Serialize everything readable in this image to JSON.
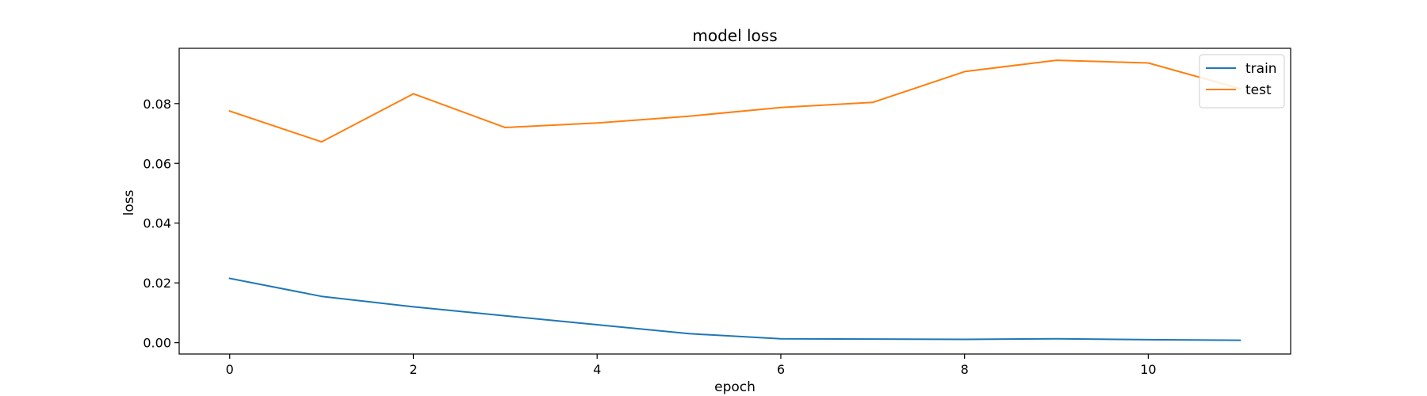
{
  "chart_data": {
    "type": "line",
    "title": "model loss",
    "xlabel": "epoch",
    "ylabel": "loss",
    "xlim": [
      -0.55,
      11.55
    ],
    "ylim": [
      -0.0038,
      0.0985
    ],
    "xticks": [
      "0",
      "2",
      "4",
      "6",
      "8",
      "10"
    ],
    "yticks": [
      "0.00",
      "0.02",
      "0.04",
      "0.06",
      "0.08"
    ],
    "grid": false,
    "legend_position": "upper right",
    "x": [
      0,
      1,
      2,
      3,
      4,
      5,
      6,
      7,
      8,
      9,
      10,
      11
    ],
    "series": [
      {
        "name": "train",
        "color": "#1f77b4",
        "values": [
          0.0215,
          0.0155,
          0.012,
          0.009,
          0.006,
          0.003,
          0.0013,
          0.0012,
          0.0011,
          0.0013,
          0.001,
          0.0008
        ]
      },
      {
        "name": "test",
        "color": "#ff7f0e",
        "values": [
          0.0775,
          0.0672,
          0.0833,
          0.072,
          0.0735,
          0.0758,
          0.0787,
          0.0804,
          0.0907,
          0.0945,
          0.0936,
          0.085
        ]
      }
    ]
  }
}
